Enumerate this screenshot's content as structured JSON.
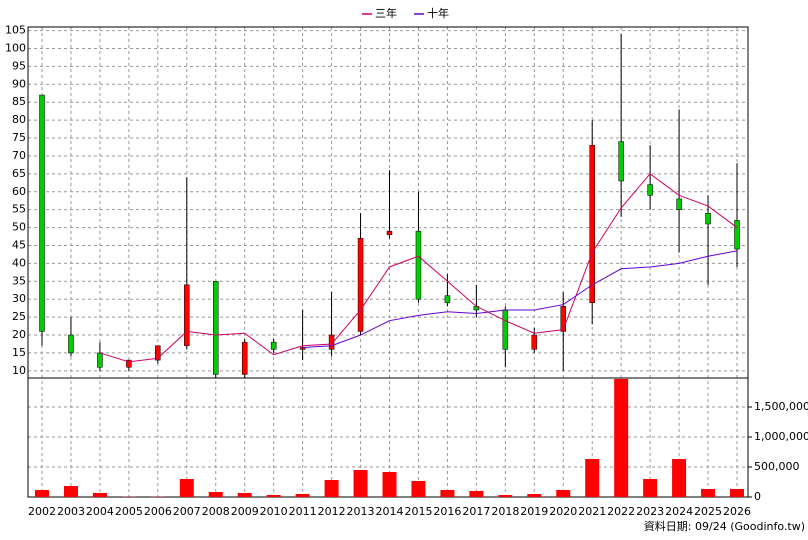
{
  "chart_data": {
    "type": "candlestick",
    "categories": [
      "2002",
      "2003",
      "2004",
      "2005",
      "2006",
      "2007",
      "2008",
      "2009",
      "2010",
      "2011",
      "2012",
      "2013",
      "2014",
      "2015",
      "2016",
      "2017",
      "2018",
      "2019",
      "2020",
      "2021",
      "2022",
      "2023",
      "2024",
      "2025",
      "2026"
    ],
    "open": [
      87,
      20,
      15,
      11,
      13,
      17,
      35,
      9,
      18,
      16,
      16,
      21,
      48,
      49,
      31,
      28,
      27,
      16,
      21,
      29,
      74,
      62,
      58,
      54,
      52
    ],
    "high": [
      87,
      25,
      18,
      13,
      17,
      64,
      35,
      19,
      19,
      27,
      32,
      54,
      66,
      60,
      37,
      34,
      28,
      22,
      32,
      80,
      104,
      73,
      83,
      59,
      68
    ],
    "low": [
      17,
      14,
      10,
      10,
      12,
      16,
      8,
      8,
      15,
      13,
      14,
      20,
      47,
      29,
      28,
      25,
      11,
      15,
      10,
      23,
      53,
      55,
      43,
      34,
      39
    ],
    "close": [
      21,
      15,
      11,
      13,
      17,
      34,
      9,
      18,
      16,
      16.5,
      20,
      47,
      49,
      30,
      29,
      27,
      16,
      20,
      28,
      73,
      63,
      59,
      55,
      51,
      44
    ],
    "up_color": "#ff0000",
    "down_color": "#00cc00",
    "series": [
      {
        "name": "三年",
        "color": "#cc0066",
        "values": [
          null,
          null,
          15,
          12.5,
          13.5,
          21,
          20,
          20.5,
          14.5,
          17,
          17.5,
          27,
          39,
          42,
          35,
          28,
          24,
          20.5,
          21.5,
          43,
          55.5,
          65,
          59,
          56,
          50
        ]
      },
      {
        "name": "十年",
        "color": "#6600cc",
        "values": [
          null,
          null,
          null,
          null,
          null,
          null,
          null,
          null,
          null,
          16.5,
          17,
          20,
          24,
          25.5,
          26.5,
          26,
          27,
          27,
          28.5,
          34,
          38.5,
          39,
          40,
          42,
          43.5
        ]
      }
    ],
    "ylim": [
      8,
      106
    ],
    "yticks": [
      10,
      15,
      20,
      25,
      30,
      35,
      40,
      45,
      50,
      55,
      60,
      65,
      70,
      75,
      80,
      85,
      90,
      95,
      100,
      105
    ],
    "grid": true,
    "volume": {
      "type": "bar",
      "color": "#ff0000",
      "values": [
        117000,
        183000,
        67000,
        5000,
        5000,
        300000,
        83000,
        67000,
        33000,
        50000,
        283000,
        450000,
        417000,
        267000,
        117000,
        100000,
        33000,
        50000,
        117000,
        633000,
        1967000,
        300000,
        633000,
        133000,
        133000
      ],
      "ylim": [
        0,
        1983000
      ],
      "yticks": [
        0,
        {
          "value": 500000,
          "label": "500,000"
        },
        {
          "value": 1000000,
          "label": "1,000,000"
        },
        {
          "value": 1500000,
          "label": "1,500,000"
        }
      ]
    },
    "source": "資料日期: 09/24  (Goodinfo.tw)"
  }
}
